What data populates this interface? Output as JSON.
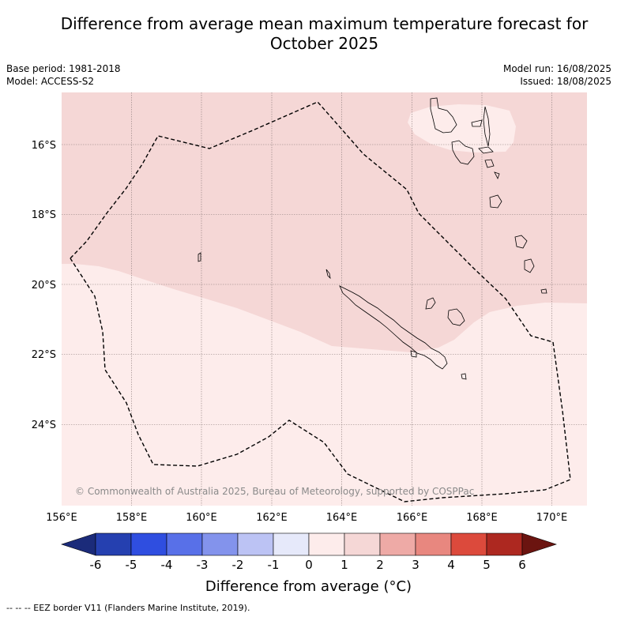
{
  "title": {
    "line1": "Difference from average mean maximum temperature forecast for",
    "line2": "October 2025"
  },
  "meta": {
    "base_period": "Base period: 1981-2018",
    "model": "Model: ACCESS-S2",
    "model_run": "Model run: 16/08/2025",
    "issued": "Issued: 18/08/2025"
  },
  "map": {
    "copyright": "© Commonwealth of Australia 2025, Bureau of Meteorology, supported by COSPPac",
    "x_ticks": [
      "156°E",
      "158°E",
      "160°E",
      "162°E",
      "164°E",
      "166°E",
      "168°E",
      "170°E"
    ],
    "y_ticks": [
      "16°S",
      "18°S",
      "20°S",
      "22°S",
      "24°S"
    ],
    "colors": {
      "anomaly_0_1": "#fdeceb",
      "anomaly_1_2": "#f5d7d6"
    }
  },
  "colorbar": {
    "ticks": [
      "-6",
      "-5",
      "-4",
      "-3",
      "-2",
      "-1",
      "0",
      "1",
      "2",
      "3",
      "4",
      "5",
      "6"
    ],
    "colors": [
      "#1b2b7a",
      "#2540b0",
      "#2f4ee0",
      "#5870e8",
      "#8393ec",
      "#bcc3f4",
      "#e6e9fa",
      "#fdeceb",
      "#f5d7d6",
      "#eeaaa6",
      "#e8877f",
      "#dc4a3c",
      "#ad2820",
      "#6b1410"
    ],
    "label": "Difference from average (°C)"
  },
  "footer": "--  --  -- EEZ border V11 (Flanders Marine Institute, 2019)."
}
